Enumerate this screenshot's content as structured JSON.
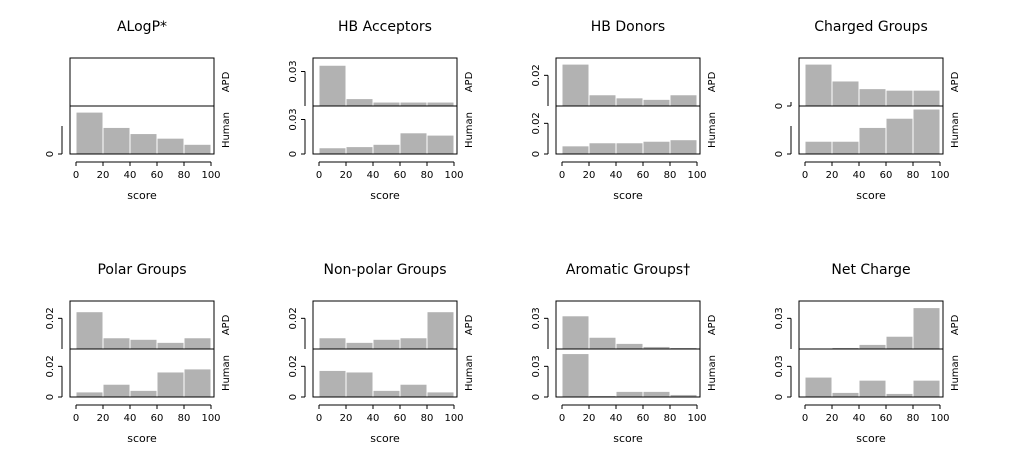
{
  "chart_data": [
    {
      "type": "bar",
      "title": "ALogP*",
      "xlabel": "score",
      "upper_label": "APD",
      "lower_label": "Human",
      "x_ticks": [
        "0",
        "20",
        "40",
        "60",
        "80",
        "100"
      ],
      "xlim": [
        0,
        100
      ],
      "bin_edges": [
        0,
        20,
        40,
        60,
        80,
        100
      ],
      "upper_y_ticks": [],
      "lower_y_ticks": [
        "0"
      ],
      "ylim": [
        0,
        0.03
      ],
      "series": [
        {
          "name": "APD",
          "values": [
            0,
            0,
            0,
            0,
            0
          ]
        },
        {
          "name": "Human",
          "values": [
            0.027,
            0.017,
            0.013,
            0.01,
            0.006
          ]
        }
      ]
    },
    {
      "type": "bar",
      "title": "HB Acceptors",
      "xlabel": "score",
      "upper_label": "APD",
      "lower_label": "Human",
      "x_ticks": [
        "0",
        "20",
        "40",
        "60",
        "80",
        "100"
      ],
      "xlim": [
        0,
        100
      ],
      "bin_edges": [
        0,
        20,
        40,
        60,
        80,
        100
      ],
      "upper_y_ticks": [
        "0.03"
      ],
      "lower_y_ticks": [
        "0",
        "0.03"
      ],
      "ylim": [
        0,
        0.04
      ],
      "series": [
        {
          "name": "APD",
          "values": [
            0.035,
            0.006,
            0.003,
            0.003,
            0.003
          ]
        },
        {
          "name": "Human",
          "values": [
            0.005,
            0.006,
            0.008,
            0.018,
            0.016
          ]
        }
      ]
    },
    {
      "type": "bar",
      "title": "HB Donors",
      "xlabel": "score",
      "upper_label": "APD",
      "lower_label": "Human",
      "x_ticks": [
        "0",
        "20",
        "40",
        "60",
        "80",
        "100"
      ],
      "xlim": [
        0,
        100
      ],
      "bin_edges": [
        0,
        20,
        40,
        60,
        80,
        100
      ],
      "upper_y_ticks": [
        "0.02"
      ],
      "lower_y_ticks": [
        "0",
        "0.02"
      ],
      "ylim": [
        0,
        0.03
      ],
      "series": [
        {
          "name": "APD",
          "values": [
            0.027,
            0.007,
            0.005,
            0.004,
            0.007
          ]
        },
        {
          "name": "Human",
          "values": [
            0.005,
            0.007,
            0.007,
            0.008,
            0.009
          ]
        }
      ]
    },
    {
      "type": "bar",
      "title": "Charged Groups",
      "xlabel": "score",
      "upper_label": "APD",
      "lower_label": "Human",
      "x_ticks": [
        "0",
        "20",
        "40",
        "60",
        "80",
        "100"
      ],
      "xlim": [
        0,
        100
      ],
      "bin_edges": [
        0,
        20,
        40,
        60,
        80,
        100
      ],
      "upper_y_ticks": [
        "0"
      ],
      "lower_y_ticks": [
        "0"
      ],
      "ylim": [
        0,
        0.03
      ],
      "series": [
        {
          "name": "APD",
          "values": [
            0.027,
            0.016,
            0.011,
            0.01,
            0.01
          ]
        },
        {
          "name": "Human",
          "values": [
            0.008,
            0.008,
            0.017,
            0.023,
            0.029
          ]
        }
      ]
    },
    {
      "type": "bar",
      "title": "Polar Groups",
      "xlabel": "score",
      "upper_label": "APD",
      "lower_label": "Human",
      "x_ticks": [
        "0",
        "20",
        "40",
        "60",
        "80",
        "100"
      ],
      "xlim": [
        0,
        100
      ],
      "bin_edges": [
        0,
        20,
        40,
        60,
        80,
        100
      ],
      "upper_y_ticks": [
        "0.02"
      ],
      "lower_y_ticks": [
        "0",
        "0.02"
      ],
      "ylim": [
        0,
        0.03
      ],
      "series": [
        {
          "name": "APD",
          "values": [
            0.024,
            0.007,
            0.006,
            0.004,
            0.007
          ]
        },
        {
          "name": "Human",
          "values": [
            0.003,
            0.008,
            0.004,
            0.016,
            0.018
          ]
        }
      ]
    },
    {
      "type": "bar",
      "title": "Non-polar Groups",
      "xlabel": "score",
      "upper_label": "APD",
      "lower_label": "Human",
      "x_ticks": [
        "0",
        "20",
        "40",
        "60",
        "80",
        "100"
      ],
      "xlim": [
        0,
        100
      ],
      "bin_edges": [
        0,
        20,
        40,
        60,
        80,
        100
      ],
      "upper_y_ticks": [
        "0.02"
      ],
      "lower_y_ticks": [
        "0",
        "0.02"
      ],
      "ylim": [
        0,
        0.03
      ],
      "series": [
        {
          "name": "APD",
          "values": [
            0.007,
            0.004,
            0.006,
            0.007,
            0.024
          ]
        },
        {
          "name": "Human",
          "values": [
            0.017,
            0.016,
            0.004,
            0.008,
            0.003
          ]
        }
      ]
    },
    {
      "type": "bar",
      "title": "Aromatic Groups†",
      "xlabel": "score",
      "upper_label": "APD",
      "lower_label": "Human",
      "x_ticks": [
        "0",
        "20",
        "40",
        "60",
        "80",
        "100"
      ],
      "xlim": [
        0,
        100
      ],
      "bin_edges": [
        0,
        20,
        40,
        60,
        80,
        100
      ],
      "upper_y_ticks": [
        "0.03"
      ],
      "lower_y_ticks": [
        "0",
        "0.03"
      ],
      "ylim": [
        0,
        0.045
      ],
      "series": [
        {
          "name": "APD",
          "values": [
            0.032,
            0.011,
            0.005,
            0.002,
            0.001
          ]
        },
        {
          "name": "Human",
          "values": [
            0.042,
            0.001,
            0.005,
            0.005,
            0.002
          ]
        }
      ]
    },
    {
      "type": "bar",
      "title": "Net Charge",
      "xlabel": "score",
      "upper_label": "APD",
      "lower_label": "Human",
      "x_ticks": [
        "0",
        "20",
        "40",
        "60",
        "80",
        "100"
      ],
      "xlim": [
        0,
        100
      ],
      "bin_edges": [
        0,
        20,
        40,
        60,
        80,
        100
      ],
      "upper_y_ticks": [
        "0.03"
      ],
      "lower_y_ticks": [
        "0",
        "0.03"
      ],
      "ylim": [
        0,
        0.045
      ],
      "series": [
        {
          "name": "APD",
          "values": [
            0,
            0.001,
            0.004,
            0.012,
            0.04
          ]
        },
        {
          "name": "Human",
          "values": [
            0.019,
            0.004,
            0.016,
            0.003,
            0.016
          ]
        }
      ]
    }
  ],
  "colors": {
    "bar_fill": "#b2b2b2",
    "axis": "#000000"
  }
}
